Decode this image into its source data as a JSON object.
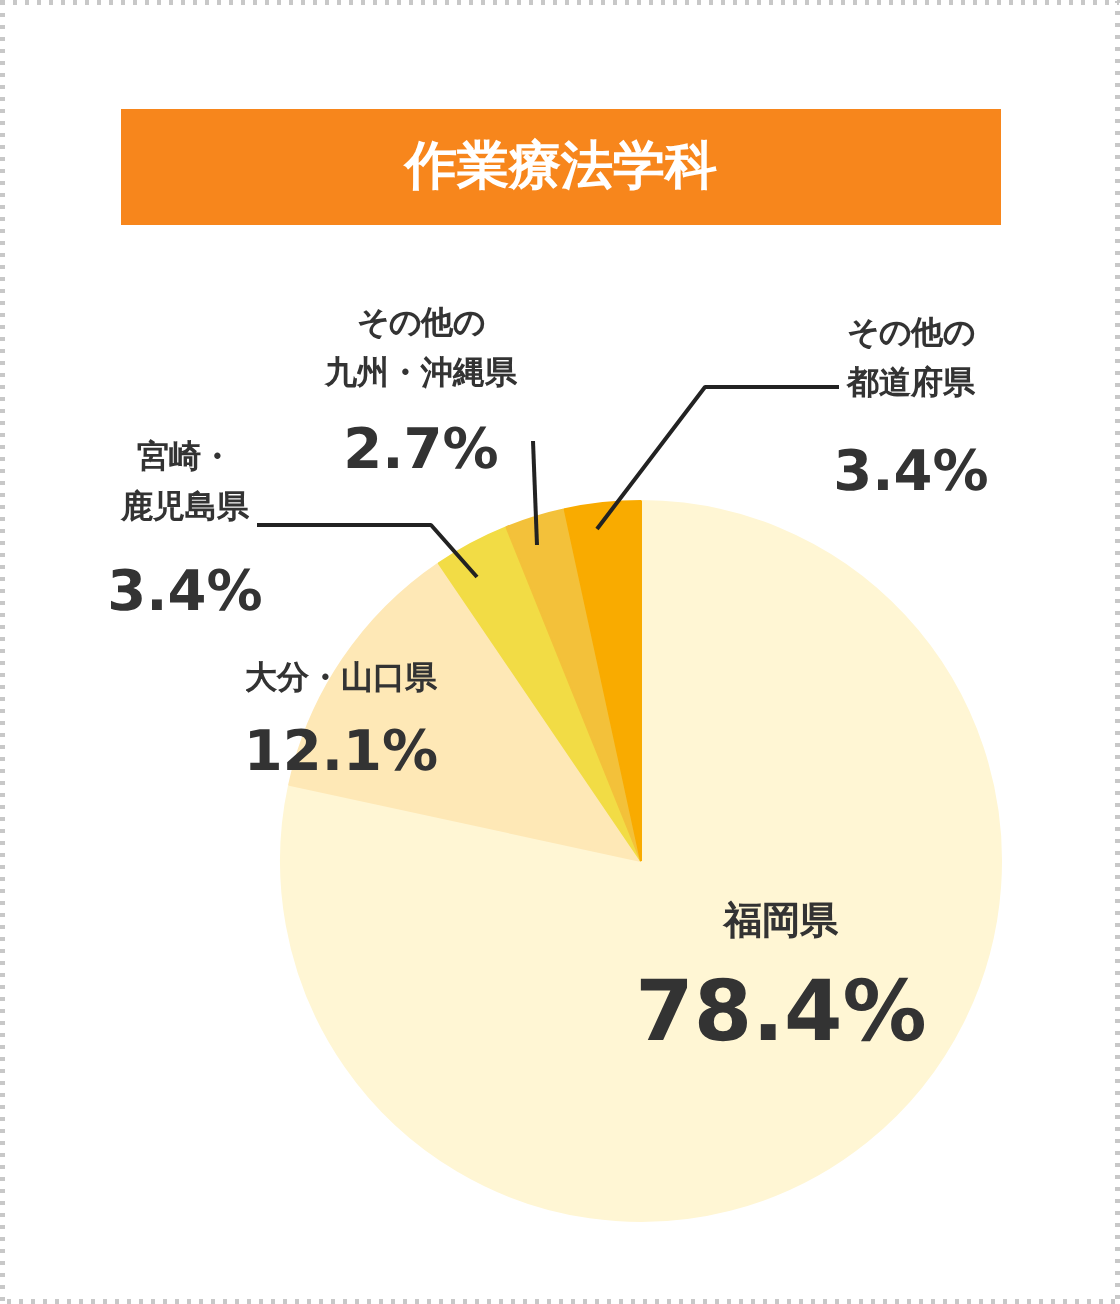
{
  "chart_data": {
    "type": "pie",
    "title": "作業療法学科",
    "categories": [
      "福岡県",
      "大分・山口県",
      "宮崎・鹿児島県",
      "その他の九州・沖縄県",
      "その他の都道府県"
    ],
    "values": [
      78.4,
      12.1,
      3.4,
      2.7,
      3.4
    ],
    "value_labels": [
      "78.4%",
      "12.1%",
      "3.4%",
      "2.7%",
      "3.4%"
    ],
    "colors": [
      "#fff6d4",
      "#fee8b6",
      "#f2dc45",
      "#f3c13a",
      "#f9ab00"
    ]
  }
}
